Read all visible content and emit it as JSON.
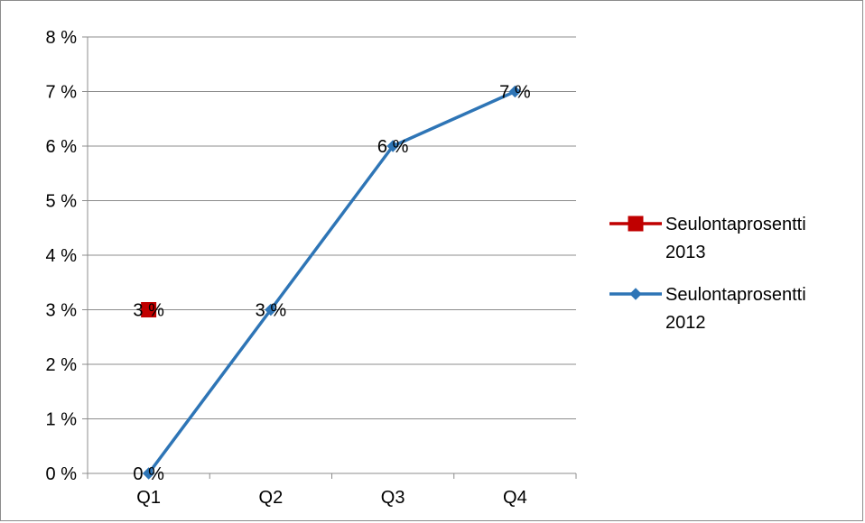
{
  "chart_data": {
    "type": "line",
    "categories": [
      "Q1",
      "Q2",
      "Q3",
      "Q4"
    ],
    "ylim": [
      0,
      8
    ],
    "yticks": [
      0,
      1,
      2,
      3,
      4,
      5,
      6,
      7,
      8
    ],
    "ytick_labels": [
      "0 %",
      "1 %",
      "2 %",
      "3 %",
      "4 %",
      "5 %",
      "6 %",
      "7 %",
      "8 %"
    ],
    "grid": true,
    "legend_position": "right",
    "series": [
      {
        "name": "Seulontaprosentti 2013",
        "legend_lines": [
          "Seulontaprosentti",
          "2013"
        ],
        "color": "#c00000",
        "marker": "square",
        "values": [
          3,
          null,
          null,
          null
        ],
        "labels": [
          "3 %",
          null,
          null,
          null
        ]
      },
      {
        "name": "Seulontaprosentti 2012",
        "legend_lines": [
          "Seulontaprosentti",
          "2012"
        ],
        "color": "#2e75b6",
        "marker": "diamond",
        "values": [
          0,
          3,
          6,
          7
        ],
        "labels": [
          "0 %",
          "3 %",
          "6 %",
          "7 %"
        ]
      }
    ]
  }
}
